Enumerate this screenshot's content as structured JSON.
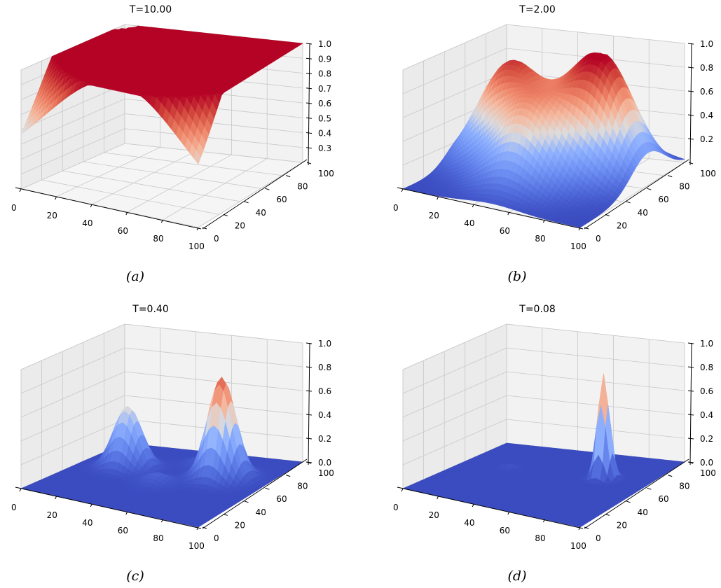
{
  "figure": {
    "panels": [
      {
        "id": "a",
        "caption": "(a)"
      },
      {
        "id": "b",
        "caption": "(b)"
      },
      {
        "id": "c",
        "caption": "(c)"
      },
      {
        "id": "d",
        "caption": "(d)"
      }
    ]
  },
  "chart_data": [
    {
      "type": "surface3d",
      "title": "T=10.00",
      "caption": "(a)",
      "colormap": "coolwarm",
      "x_range": [
        0,
        100
      ],
      "y_range": [
        0,
        100
      ],
      "z_range": [
        0.2,
        1.0
      ],
      "x_ticks": [
        "0",
        "20",
        "40",
        "60",
        "80",
        "100"
      ],
      "y_ticks": [
        "0",
        "20",
        "40",
        "60",
        "80",
        "100"
      ],
      "z_ticks": [
        "0.3",
        "0.4",
        "0.5",
        "0.6",
        "0.7",
        "0.8",
        "0.9",
        "1.0"
      ],
      "z_tick_values": [
        0.3,
        0.4,
        0.5,
        0.6,
        0.7,
        0.8,
        0.9,
        1.0
      ],
      "grid": true,
      "peaks": [
        {
          "x": 75,
          "y": 65,
          "height": 1.0,
          "width": 38
        },
        {
          "x": 25,
          "y": 60,
          "height": 0.95,
          "width": 38
        },
        {
          "x": 55,
          "y": 30,
          "height": 0.9,
          "width": 36
        },
        {
          "x": 55,
          "y": 85,
          "height": 0.88,
          "width": 36
        }
      ],
      "baseline": 0.2
    },
    {
      "type": "surface3d",
      "title": "T=2.00",
      "caption": "(b)",
      "colormap": "coolwarm",
      "x_range": [
        0,
        100
      ],
      "y_range": [
        0,
        100
      ],
      "z_range": [
        0.0,
        1.0
      ],
      "x_ticks": [
        "0",
        "20",
        "40",
        "60",
        "80",
        "100"
      ],
      "y_ticks": [
        "0",
        "20",
        "40",
        "60",
        "80",
        "100"
      ],
      "z_ticks": [
        "0.2",
        "0.4",
        "0.6",
        "0.8",
        "1.0"
      ],
      "z_tick_values": [
        0.2,
        0.4,
        0.6,
        0.8,
        1.0
      ],
      "grid": true,
      "peaks": [
        {
          "x": 75,
          "y": 65,
          "height": 0.92,
          "width": 16
        },
        {
          "x": 25,
          "y": 60,
          "height": 0.85,
          "width": 16
        },
        {
          "x": 50,
          "y": 35,
          "height": 0.6,
          "width": 15
        },
        {
          "x": 55,
          "y": 85,
          "height": 0.55,
          "width": 14
        }
      ],
      "baseline": 0.0
    },
    {
      "type": "surface3d",
      "title": "T=0.40",
      "caption": "(c)",
      "colormap": "coolwarm",
      "x_range": [
        0,
        100
      ],
      "y_range": [
        0,
        100
      ],
      "z_range": [
        0.0,
        1.0
      ],
      "x_ticks": [
        "0",
        "20",
        "40",
        "60",
        "80",
        "100"
      ],
      "y_ticks": [
        "0",
        "20",
        "40",
        "60",
        "80",
        "100"
      ],
      "z_ticks": [
        "0.0",
        "0.2",
        "0.4",
        "0.6",
        "0.8",
        "1.0"
      ],
      "z_tick_values": [
        0.0,
        0.2,
        0.4,
        0.6,
        0.8,
        1.0
      ],
      "grid": true,
      "peaks": [
        {
          "x": 75,
          "y": 65,
          "height": 0.85,
          "width": 7
        },
        {
          "x": 25,
          "y": 60,
          "height": 0.52,
          "width": 7
        },
        {
          "x": 50,
          "y": 45,
          "height": 0.08,
          "width": 6
        },
        {
          "x": 55,
          "y": 80,
          "height": 0.06,
          "width": 6
        }
      ],
      "baseline": 0.0
    },
    {
      "type": "surface3d",
      "title": "T=0.08",
      "caption": "(d)",
      "colormap": "coolwarm",
      "x_range": [
        0,
        100
      ],
      "y_range": [
        0,
        100
      ],
      "z_range": [
        0.0,
        1.0
      ],
      "x_ticks": [
        "0",
        "20",
        "40",
        "60",
        "80",
        "100"
      ],
      "y_ticks": [
        "0",
        "20",
        "40",
        "60",
        "80",
        "100"
      ],
      "z_ticks": [
        "0.0",
        "0.2",
        "0.4",
        "0.6",
        "0.8",
        "1.0"
      ],
      "z_tick_values": [
        0.0,
        0.2,
        0.4,
        0.6,
        0.8,
        1.0
      ],
      "grid": true,
      "peaks": [
        {
          "x": 75,
          "y": 65,
          "height": 0.88,
          "width": 3
        },
        {
          "x": 25,
          "y": 60,
          "height": 0.03,
          "width": 3
        }
      ],
      "baseline": 0.0
    }
  ]
}
